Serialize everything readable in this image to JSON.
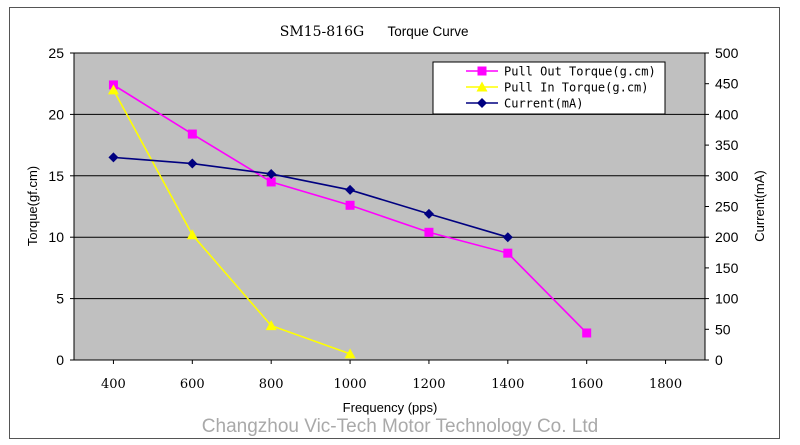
{
  "chart_data": {
    "type": "line",
    "title_model": "SM15-816G",
    "title_text": "Torque Curve",
    "xlabel": "Frequency (pps)",
    "ylabel_left": "Torque(gf.cm)",
    "ylabel_right": "Current(mA)",
    "xlim": [
      300,
      1900
    ],
    "ylim_left": [
      0,
      25
    ],
    "ylim_right": [
      0,
      500
    ],
    "x_ticks": [
      400,
      600,
      800,
      1000,
      1200,
      1400,
      1600,
      1800
    ],
    "y_left_ticks": [
      0,
      5,
      10,
      15,
      20,
      25
    ],
    "y_right_ticks": [
      0,
      50,
      100,
      150,
      200,
      250,
      300,
      350,
      400,
      450,
      500
    ],
    "grid": true,
    "legend_position": "top-right",
    "series": [
      {
        "name": "Pull Out Torque(g.cm)",
        "axis": "left",
        "color": "#ff00ff",
        "marker": "square",
        "x": [
          400,
          600,
          800,
          1000,
          1200,
          1400,
          1600
        ],
        "y": [
          22.4,
          18.4,
          14.5,
          12.6,
          10.4,
          8.7,
          2.2
        ]
      },
      {
        "name": "Pull In Torque(g.cm)",
        "axis": "left",
        "color": "#ffff00",
        "marker": "triangle",
        "x": [
          400,
          600,
          800,
          1000
        ],
        "y": [
          22.0,
          10.2,
          2.8,
          0.5
        ]
      },
      {
        "name": "Current(mA)",
        "axis": "right",
        "color": "#000080",
        "marker": "diamond",
        "x": [
          400,
          600,
          800,
          1000,
          1200,
          1400
        ],
        "y": [
          330,
          320,
          303,
          277,
          238,
          200
        ]
      }
    ]
  },
  "watermark": "Changzhou Vic-Tech Motor Technology Co.  Ltd",
  "colors": {
    "plot_background": "#c0c0c0",
    "gridline": "#000000",
    "frame": "#555555"
  }
}
